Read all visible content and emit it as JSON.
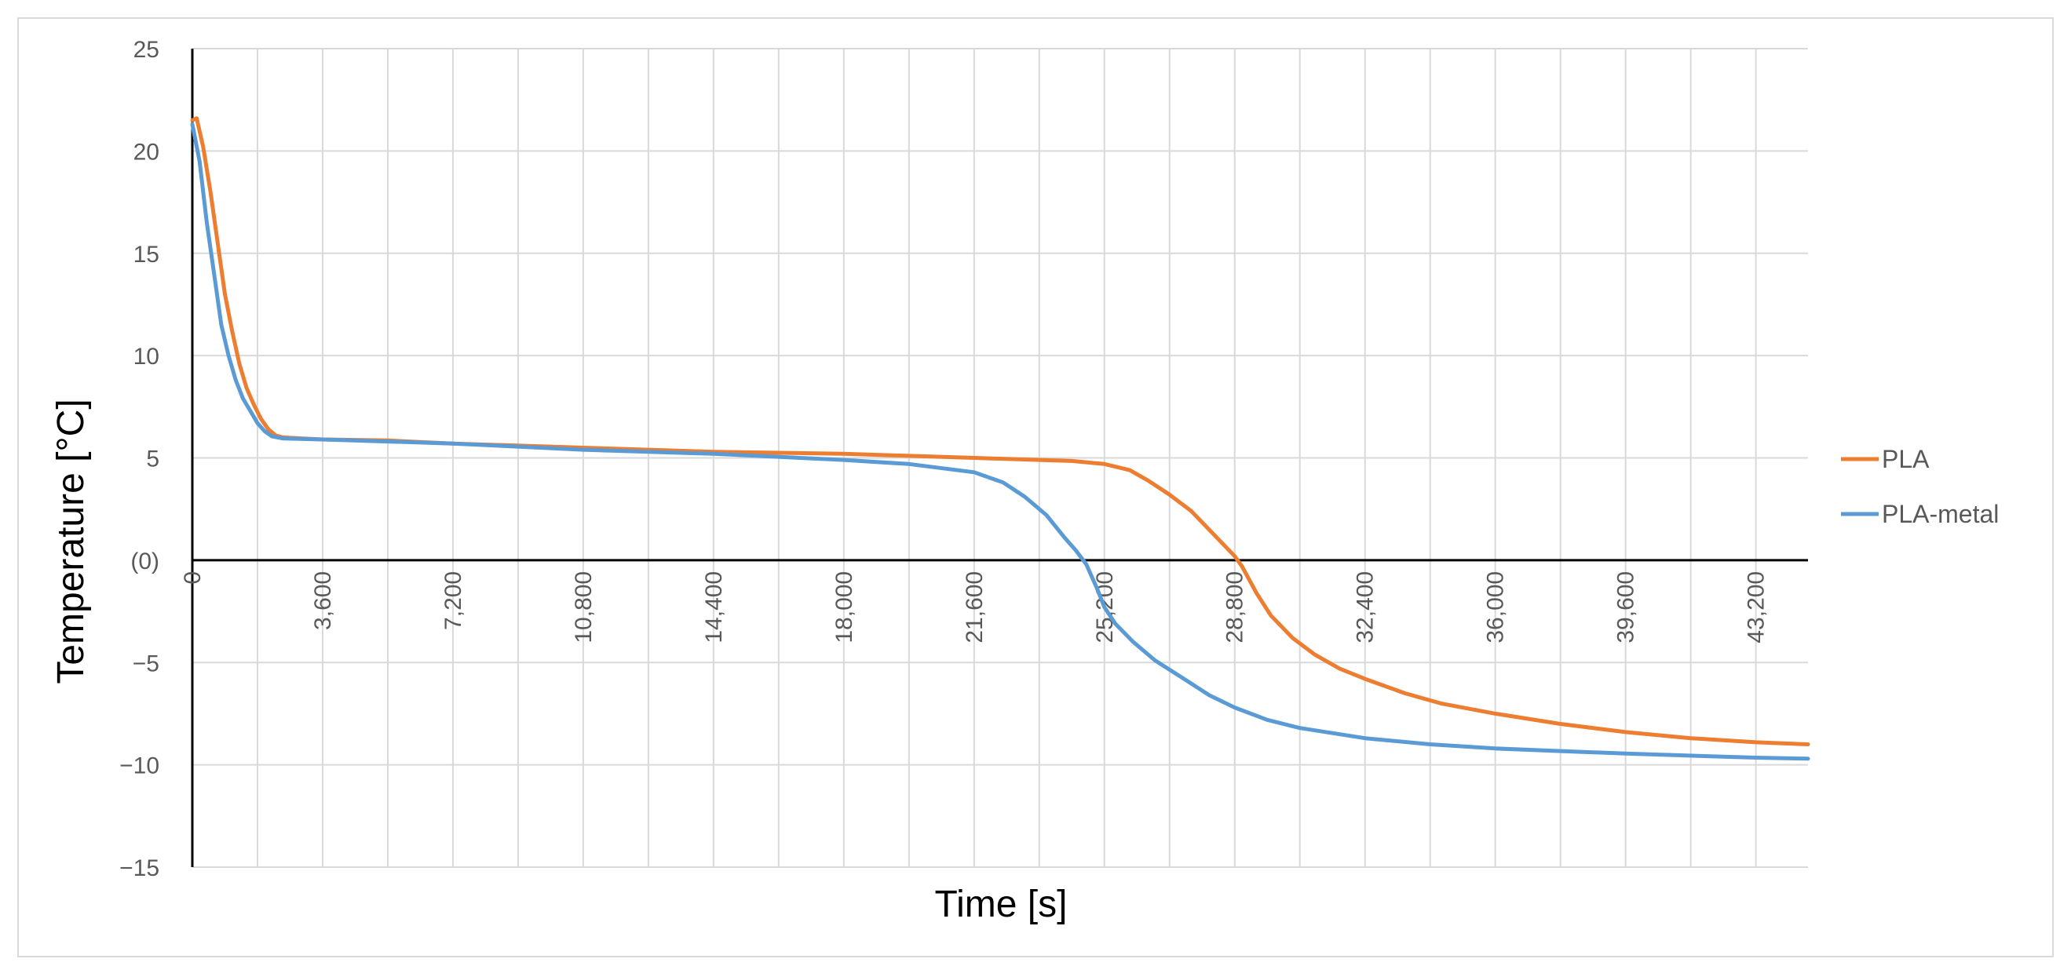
{
  "chart_data": {
    "type": "line",
    "title": "",
    "xlabel": "Time [s]",
    "ylabel": "Temperature [°C]",
    "xlim": [
      0,
      44640
    ],
    "ylim": [
      -15,
      25
    ],
    "x_ticks": [
      0,
      3600,
      7200,
      10800,
      14400,
      18000,
      21600,
      25200,
      28800,
      32400,
      36000,
      39600,
      43200
    ],
    "x_tick_labels": [
      "0",
      "3,600",
      "7,200",
      "10,800",
      "14,400",
      "18,000",
      "21,600",
      "25,200",
      "28,800",
      "32,400",
      "36,000",
      "39,600",
      "43,200"
    ],
    "y_ticks": [
      25,
      20,
      15,
      10,
      5,
      0,
      -5,
      -10,
      -15
    ],
    "y_tick_labels": [
      "25",
      "20",
      "15",
      "10",
      "5",
      "(0)",
      "−5",
      "−10",
      "−15"
    ],
    "grid": true,
    "legend_position": "right",
    "series": [
      {
        "name": "PLA",
        "color": "#ed7d31",
        "points": [
          [
            0,
            21.5
          ],
          [
            120,
            21.6
          ],
          [
            300,
            20.2
          ],
          [
            500,
            18.0
          ],
          [
            700,
            15.5
          ],
          [
            900,
            13.0
          ],
          [
            1100,
            11.2
          ],
          [
            1300,
            9.6
          ],
          [
            1500,
            8.4
          ],
          [
            1700,
            7.6
          ],
          [
            1900,
            6.9
          ],
          [
            2100,
            6.4
          ],
          [
            2300,
            6.1
          ],
          [
            2500,
            6.0
          ],
          [
            3600,
            5.9
          ],
          [
            5400,
            5.85
          ],
          [
            7200,
            5.7
          ],
          [
            10800,
            5.5
          ],
          [
            14400,
            5.3
          ],
          [
            18000,
            5.2
          ],
          [
            21600,
            5.0
          ],
          [
            23400,
            4.9
          ],
          [
            24300,
            4.85
          ],
          [
            25200,
            4.7
          ],
          [
            25900,
            4.4
          ],
          [
            26400,
            3.9
          ],
          [
            27000,
            3.2
          ],
          [
            27600,
            2.4
          ],
          [
            28200,
            1.3
          ],
          [
            28800,
            0.2
          ],
          [
            29000,
            -0.3
          ],
          [
            29400,
            -1.6
          ],
          [
            29800,
            -2.7
          ],
          [
            30400,
            -3.8
          ],
          [
            31000,
            -4.6
          ],
          [
            31700,
            -5.3
          ],
          [
            32400,
            -5.8
          ],
          [
            33500,
            -6.5
          ],
          [
            34500,
            -7.0
          ],
          [
            36000,
            -7.5
          ],
          [
            37800,
            -8.0
          ],
          [
            39600,
            -8.4
          ],
          [
            41400,
            -8.7
          ],
          [
            43200,
            -8.9
          ],
          [
            44640,
            -9.0
          ]
        ]
      },
      {
        "name": "PLA-metal",
        "color": "#5b9bd5",
        "points": [
          [
            0,
            21.3
          ],
          [
            200,
            19.5
          ],
          [
            400,
            16.5
          ],
          [
            600,
            14.0
          ],
          [
            800,
            11.5
          ],
          [
            1000,
            10.0
          ],
          [
            1200,
            8.8
          ],
          [
            1400,
            7.9
          ],
          [
            1600,
            7.3
          ],
          [
            1800,
            6.7
          ],
          [
            2000,
            6.3
          ],
          [
            2200,
            6.05
          ],
          [
            2500,
            5.95
          ],
          [
            3600,
            5.9
          ],
          [
            7200,
            5.7
          ],
          [
            10800,
            5.4
          ],
          [
            14400,
            5.2
          ],
          [
            18000,
            4.9
          ],
          [
            19800,
            4.7
          ],
          [
            21600,
            4.3
          ],
          [
            22400,
            3.8
          ],
          [
            23000,
            3.1
          ],
          [
            23600,
            2.2
          ],
          [
            24100,
            1.1
          ],
          [
            24400,
            0.5
          ],
          [
            24700,
            -0.2
          ],
          [
            25000,
            -1.4
          ],
          [
            25200,
            -2.3
          ],
          [
            25500,
            -3.1
          ],
          [
            26000,
            -4.0
          ],
          [
            26600,
            -4.9
          ],
          [
            27400,
            -5.8
          ],
          [
            28100,
            -6.6
          ],
          [
            28800,
            -7.2
          ],
          [
            29700,
            -7.8
          ],
          [
            30600,
            -8.2
          ],
          [
            32400,
            -8.7
          ],
          [
            34200,
            -9.0
          ],
          [
            36000,
            -9.2
          ],
          [
            39600,
            -9.45
          ],
          [
            43200,
            -9.65
          ],
          [
            44640,
            -9.7
          ]
        ]
      }
    ]
  }
}
